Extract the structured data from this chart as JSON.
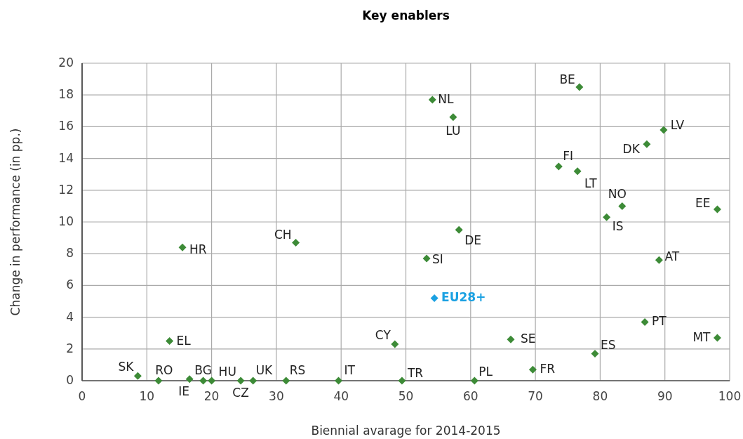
{
  "chart_data": {
    "type": "scatter",
    "title": "Key enablers",
    "xlabel": "Biennial avarage for 2014-2015",
    "ylabel": "Change in performance (in pp.)",
    "xlim": [
      0,
      100
    ],
    "xticks": [
      0,
      10,
      20,
      30,
      40,
      50,
      60,
      70,
      80,
      90,
      100
    ],
    "ylim": [
      0,
      20
    ],
    "yticks": [
      0,
      2,
      4,
      6,
      8,
      10,
      12,
      14,
      16,
      18,
      20
    ],
    "grid": true,
    "marker": "diamond",
    "series": [
      {
        "color": "#3d8b37",
        "x": [
          8.6,
          11.8,
          16.6,
          18.7,
          20.0,
          24.5,
          26.4,
          31.5,
          39.6,
          49.4,
          13.5,
          48.3,
          15.5,
          33.0,
          76.8,
          54.1,
          57.3,
          89.8,
          87.2,
          73.6,
          76.5,
          83.4,
          81.0,
          98.1,
          58.2,
          53.2,
          89.1,
          86.9,
          98.1,
          66.2,
          79.2,
          69.6,
          60.6
        ],
        "values": [
          0.3,
          0,
          0.1,
          0,
          0,
          0,
          0,
          0,
          0,
          0,
          2.5,
          2.3,
          8.4,
          8.7,
          18.5,
          17.7,
          16.6,
          15.8,
          14.9,
          13.5,
          13.2,
          11.0,
          10.3,
          10.8,
          9.5,
          7.7,
          7.6,
          3.7,
          2.7,
          2.6,
          1.7,
          0.7,
          0
        ]
      },
      {
        "name": "EU28+",
        "color": "#1ba1e2",
        "x": [
          54.4
        ],
        "values": [
          5.2
        ]
      }
    ],
    "annotations": [
      {
        "text": "SK",
        "x": 8.6,
        "y": 0.3
      },
      {
        "text": "RO",
        "x": 11.8,
        "y": 0
      },
      {
        "text": "IE",
        "x": 16.6,
        "y": 0.1
      },
      {
        "text": "BG",
        "x": 18.7,
        "y": 0
      },
      {
        "text": "HU",
        "x": 20.0,
        "y": 0
      },
      {
        "text": "CZ",
        "x": 24.5,
        "y": 0
      },
      {
        "text": "UK",
        "x": 26.4,
        "y": 0
      },
      {
        "text": "RS",
        "x": 31.5,
        "y": 0
      },
      {
        "text": "IT",
        "x": 39.6,
        "y": 0
      },
      {
        "text": "TR",
        "x": 49.4,
        "y": 0
      },
      {
        "text": "EL",
        "x": 13.5,
        "y": 2.5
      },
      {
        "text": "CY",
        "x": 48.3,
        "y": 2.3
      },
      {
        "text": "HR",
        "x": 15.5,
        "y": 8.4
      },
      {
        "text": "CH",
        "x": 33.0,
        "y": 8.7
      },
      {
        "text": "BE",
        "x": 76.8,
        "y": 18.5
      },
      {
        "text": "NL",
        "x": 54.1,
        "y": 17.7
      },
      {
        "text": "LU",
        "x": 57.3,
        "y": 16.6
      },
      {
        "text": "LV",
        "x": 89.8,
        "y": 15.8
      },
      {
        "text": "DK",
        "x": 87.2,
        "y": 14.9
      },
      {
        "text": "FI",
        "x": 73.6,
        "y": 13.5
      },
      {
        "text": "LT",
        "x": 76.5,
        "y": 13.2
      },
      {
        "text": "NO",
        "x": 83.4,
        "y": 11.0
      },
      {
        "text": "IS",
        "x": 81.0,
        "y": 10.3
      },
      {
        "text": "EE",
        "x": 98.1,
        "y": 10.8
      },
      {
        "text": "DE",
        "x": 58.2,
        "y": 9.5
      },
      {
        "text": "SI",
        "x": 53.2,
        "y": 7.7
      },
      {
        "text": "AT",
        "x": 89.1,
        "y": 7.6
      },
      {
        "text": "PT",
        "x": 86.9,
        "y": 3.7
      },
      {
        "text": "MT",
        "x": 98.1,
        "y": 2.7
      },
      {
        "text": "SE",
        "x": 66.2,
        "y": 2.6
      },
      {
        "text": "ES",
        "x": 79.2,
        "y": 1.7
      },
      {
        "text": "FR",
        "x": 69.6,
        "y": 0.7
      },
      {
        "text": "PL",
        "x": 60.6,
        "y": 0
      }
    ]
  }
}
